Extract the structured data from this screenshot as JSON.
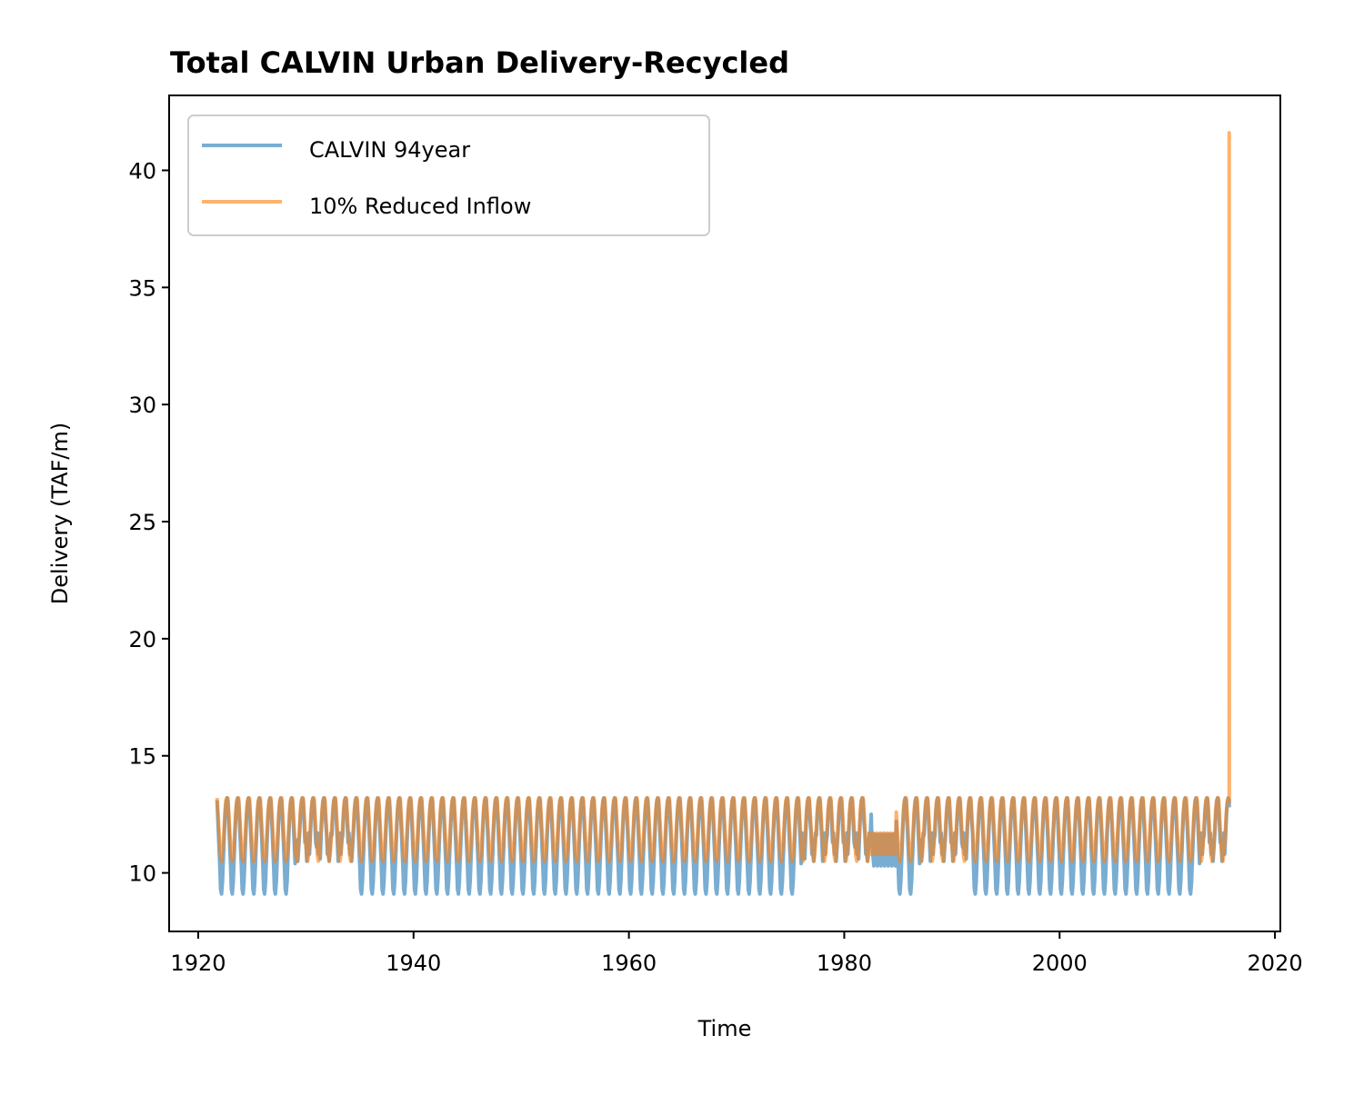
{
  "chart_data": {
    "type": "line",
    "title": "Total CALVIN Urban Delivery-Recycled",
    "xlabel": "Time",
    "ylabel": "Delivery (TAF/m)",
    "xlim": [
      1917.3,
      2020.5
    ],
    "ylim": [
      7.5,
      43.2
    ],
    "xticks": [
      1920,
      1940,
      1960,
      1980,
      2000,
      2020
    ],
    "yticks": [
      10,
      15,
      20,
      25,
      30,
      35,
      40
    ],
    "grid": false,
    "legend_position": "top-left",
    "colors": {
      "series1": "#1f77b4",
      "series2": "#ff7f0e"
    },
    "series": [
      {
        "name": "CALVIN 94year",
        "color": "#1f77b4",
        "pattern": {
          "start_year": 1921.75,
          "end_year": 2015.75,
          "months": 1129,
          "annual_cycle": [
            13.1,
            12.2,
            11.3,
            10.4,
            9.3,
            9.1,
            9.6,
            10.6,
            11.6,
            12.5,
            13.0,
            13.2
          ],
          "end_value": 12.8
        }
      },
      {
        "name": "10% Reduced Inflow",
        "color": "#ff7f0e",
        "pattern": {
          "start_year": 1921.75,
          "end_year": 2015.75,
          "months": 1129,
          "annual_cycle": [
            13.2,
            12.6,
            11.9,
            11.2,
            10.7,
            10.5,
            10.8,
            11.3,
            12.0,
            12.7,
            13.1,
            13.2
          ],
          "peak_year": 2015.75,
          "peak_value": 41.6
        }
      }
    ]
  }
}
